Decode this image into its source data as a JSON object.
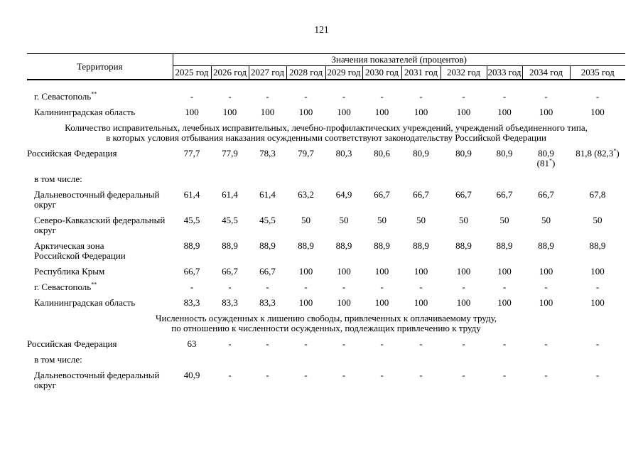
{
  "page": {
    "number": "121"
  },
  "table": {
    "territory_header": "Территория",
    "values_header": "Значения показателей (процентов)",
    "year_headers": [
      "2025 год",
      "2026 год",
      "2027 год",
      "2028 год",
      "2029 год",
      "2030 год",
      "2031 год",
      "2032 год",
      "2033 год",
      "2034 год",
      "2035 год"
    ],
    "rows": [
      {
        "type": "data",
        "indent": true,
        "label": "г. Севастополь**",
        "values": [
          "-",
          "-",
          "-",
          "-",
          "-",
          "-",
          "-",
          "-",
          "-",
          "-",
          "-"
        ]
      },
      {
        "type": "data",
        "indent": true,
        "label": "Калининградская область",
        "values": [
          "100",
          "100",
          "100",
          "100",
          "100",
          "100",
          "100",
          "100",
          "100",
          "100",
          "100"
        ]
      },
      {
        "type": "section",
        "lines": [
          "Количество исправительных, лечебных исправительных, лечебно-профилактических учреждений, учреждений объединенного типа,",
          "в которых условия отбывания наказания осужденными соответствуют законодательству Российской Федерации"
        ]
      },
      {
        "type": "data",
        "indent": false,
        "label": "Российская Федерация",
        "values": [
          "77,7",
          "77,9",
          "78,3",
          "79,7",
          "80,3",
          "80,6",
          "80,9",
          "80,9",
          "80,9",
          "80,9\n(81*)",
          "81,8 (82,3*)"
        ]
      },
      {
        "type": "label-only",
        "indent": true,
        "label": "в том числе:"
      },
      {
        "type": "data",
        "indent": true,
        "label": "Дальневосточный федеральный\nокруг",
        "values": [
          "61,4",
          "61,4",
          "61,4",
          "63,2",
          "64,9",
          "66,7",
          "66,7",
          "66,7",
          "66,7",
          "66,7",
          "67,8"
        ]
      },
      {
        "type": "data",
        "indent": true,
        "label": "Северо-Кавказский федеральный\nокруг",
        "values": [
          "45,5",
          "45,5",
          "45,5",
          "50",
          "50",
          "50",
          "50",
          "50",
          "50",
          "50",
          "50"
        ]
      },
      {
        "type": "data",
        "indent": true,
        "label": "Арктическая зона\nРоссийской Федерации",
        "values": [
          "88,9",
          "88,9",
          "88,9",
          "88,9",
          "88,9",
          "88,9",
          "88,9",
          "88,9",
          "88,9",
          "88,9",
          "88,9"
        ]
      },
      {
        "type": "data",
        "indent": true,
        "label": "Республика Крым",
        "values": [
          "66,7",
          "66,7",
          "66,7",
          "100",
          "100",
          "100",
          "100",
          "100",
          "100",
          "100",
          "100"
        ]
      },
      {
        "type": "data",
        "indent": true,
        "label": "г. Севастополь**",
        "values": [
          "-",
          "-",
          "-",
          "-",
          "-",
          "-",
          "-",
          "-",
          "-",
          "-",
          "-"
        ]
      },
      {
        "type": "data",
        "indent": true,
        "label": "Калининградская область",
        "values": [
          "83,3",
          "83,3",
          "83,3",
          "100",
          "100",
          "100",
          "100",
          "100",
          "100",
          "100",
          "100"
        ]
      },
      {
        "type": "section",
        "lines": [
          "Численность осужденных к лишению свободы, привлеченных к оплачиваемому труду,",
          "по отношению к численности осужденных, подлежащих привлечению к труду"
        ]
      },
      {
        "type": "data",
        "indent": false,
        "label": "Российская Федерация",
        "values": [
          "63",
          "-",
          "-",
          "-",
          "-",
          "-",
          "-",
          "-",
          "-",
          "-",
          "-"
        ]
      },
      {
        "type": "label-only",
        "indent": true,
        "label": "в том числе:"
      },
      {
        "type": "data",
        "indent": true,
        "label": "Дальневосточный федеральный\nокруг",
        "values": [
          "40,9",
          "-",
          "-",
          "-",
          "-",
          "-",
          "-",
          "-",
          "-",
          "-",
          "-"
        ]
      }
    ]
  }
}
